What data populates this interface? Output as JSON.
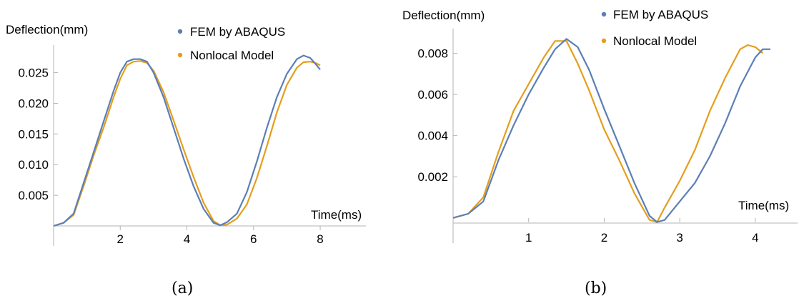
{
  "colors": {
    "fem": "#5b7fb6",
    "nonlocal": "#e59e1c"
  },
  "chart_data": [
    {
      "type": "line",
      "caption": "(a)",
      "ylabel": "Deflection(mm)",
      "xlabel": "Time(ms)",
      "xlim": [
        0,
        8.9
      ],
      "ylim": [
        0,
        0.0295
      ],
      "xticks": [
        2,
        4,
        6,
        8
      ],
      "xtick_labels": [
        "2",
        "4",
        "6",
        "8"
      ],
      "yticks": [
        0.005,
        0.01,
        0.015,
        0.02,
        0.025
      ],
      "ytick_labels": [
        "0.005",
        "0.010",
        "0.015",
        "0.020",
        "0.025"
      ],
      "grid": false,
      "legend": "top-right",
      "series": [
        {
          "name": "FEM by ABAQUS",
          "color_key": "fem",
          "x": [
            0,
            0.3,
            0.6,
            0.9,
            1.2,
            1.5,
            1.8,
            2.0,
            2.2,
            2.4,
            2.6,
            2.8,
            3.0,
            3.3,
            3.6,
            3.9,
            4.2,
            4.5,
            4.8,
            5.0,
            5.2,
            5.5,
            5.8,
            6.1,
            6.4,
            6.7,
            7.0,
            7.3,
            7.5,
            7.7,
            7.85,
            8.0
          ],
          "y": [
            0,
            0.0005,
            0.002,
            0.007,
            0.012,
            0.017,
            0.022,
            0.025,
            0.0268,
            0.0272,
            0.0272,
            0.0268,
            0.025,
            0.021,
            0.016,
            0.011,
            0.0065,
            0.0028,
            0.0005,
            0.0001,
            0.0006,
            0.002,
            0.0055,
            0.0105,
            0.016,
            0.021,
            0.0248,
            0.0272,
            0.0278,
            0.0274,
            0.0265,
            0.0255
          ]
        },
        {
          "name": "Nonlocal Model",
          "color_key": "nonlocal",
          "x": [
            0,
            0.3,
            0.6,
            0.9,
            1.2,
            1.5,
            1.8,
            2.0,
            2.2,
            2.4,
            2.6,
            2.8,
            3.0,
            3.3,
            3.6,
            3.9,
            4.2,
            4.5,
            4.8,
            5.0,
            5.2,
            5.5,
            5.8,
            6.1,
            6.4,
            6.7,
            7.0,
            7.3,
            7.5,
            7.7,
            7.85,
            8.0
          ],
          "y": [
            0,
            0.0005,
            0.0018,
            0.0065,
            0.0115,
            0.016,
            0.021,
            0.024,
            0.0262,
            0.0268,
            0.0269,
            0.0266,
            0.0253,
            0.0218,
            0.0172,
            0.0125,
            0.008,
            0.0038,
            0.0008,
            0.0001,
            0.0002,
            0.0012,
            0.0035,
            0.0078,
            0.013,
            0.0185,
            0.023,
            0.0258,
            0.0267,
            0.0268,
            0.0266,
            0.0262
          ]
        }
      ]
    },
    {
      "type": "line",
      "caption": "(b)",
      "ylabel": "Deflection(mm)",
      "xlabel": "Time(ms)",
      "xlim": [
        0,
        4.55
      ],
      "ylim": [
        -0.00025,
        0.0092
      ],
      "xticks": [
        1,
        2,
        3,
        4
      ],
      "xtick_labels": [
        "1",
        "2",
        "3",
        "4"
      ],
      "yticks": [
        0.002,
        0.004,
        0.006,
        0.008
      ],
      "ytick_labels": [
        "0.002",
        "0.004",
        "0.006",
        "0.008"
      ],
      "grid": false,
      "legend": "top-right",
      "series": [
        {
          "name": "FEM by ABAQUS",
          "color_key": "fem",
          "x": [
            0,
            0.2,
            0.4,
            0.6,
            0.8,
            1.0,
            1.2,
            1.35,
            1.5,
            1.65,
            1.8,
            2.0,
            2.2,
            2.4,
            2.6,
            2.7,
            2.8,
            3.0,
            3.2,
            3.4,
            3.6,
            3.8,
            4.0,
            4.1,
            4.2
          ],
          "y": [
            0,
            0.0002,
            0.0008,
            0.0028,
            0.0045,
            0.006,
            0.0073,
            0.0082,
            0.0087,
            0.0083,
            0.0072,
            0.0053,
            0.0035,
            0.0017,
            0.0001,
            -0.0002,
            -0.0001,
            0.0008,
            0.0017,
            0.003,
            0.0046,
            0.0064,
            0.0078,
            0.0082,
            0.0082
          ]
        },
        {
          "name": "Nonlocal Model",
          "color_key": "nonlocal",
          "x": [
            0,
            0.2,
            0.4,
            0.6,
            0.8,
            1.0,
            1.2,
            1.35,
            1.5,
            1.65,
            1.8,
            2.0,
            2.2,
            2.4,
            2.6,
            2.7,
            2.8,
            3.0,
            3.2,
            3.4,
            3.6,
            3.8,
            3.9,
            4.0,
            4.1
          ],
          "y": [
            0,
            0.0002,
            0.001,
            0.0032,
            0.0052,
            0.0065,
            0.0078,
            0.0086,
            0.0086,
            0.0075,
            0.0062,
            0.0043,
            0.0028,
            0.0012,
            -0.0001,
            -0.0002,
            0.0005,
            0.0018,
            0.0033,
            0.0052,
            0.0068,
            0.0082,
            0.0084,
            0.0083,
            0.008
          ]
        }
      ]
    }
  ]
}
